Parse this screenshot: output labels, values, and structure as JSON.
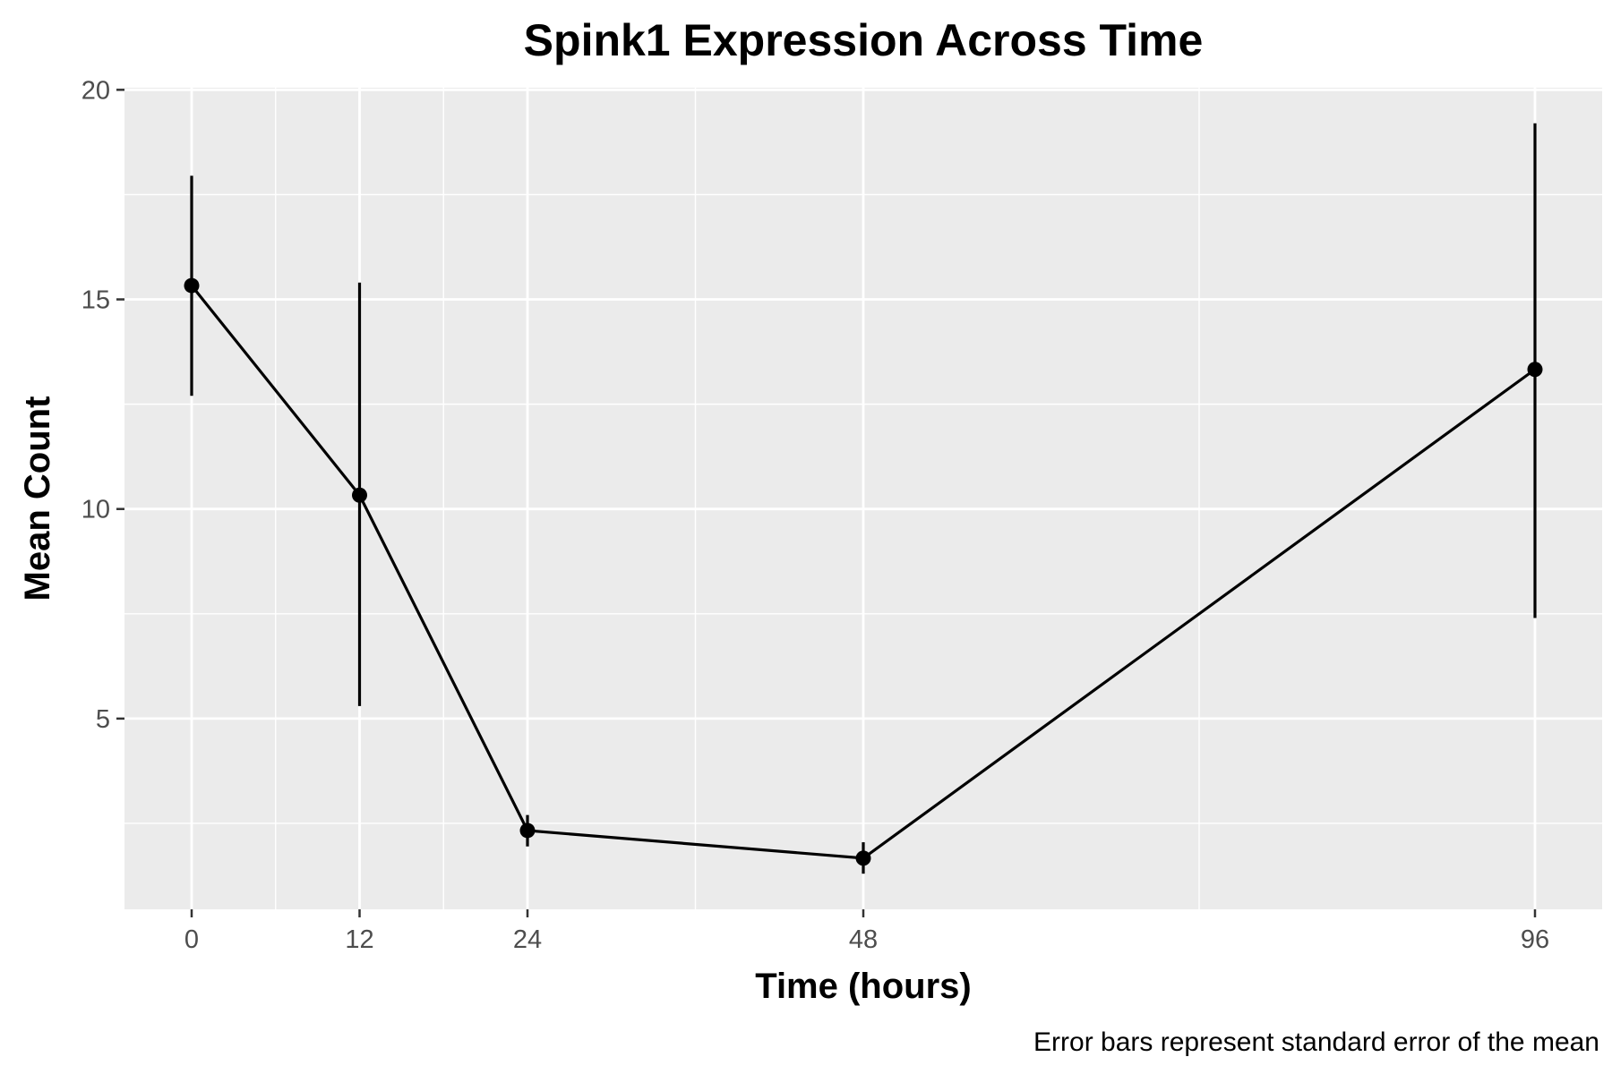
{
  "chart_data": {
    "type": "line",
    "title": "Spink1 Expression Across Time",
    "xlabel": "Time (hours)",
    "ylabel": "Mean Count",
    "caption": "Error bars represent standard error of the mean",
    "x_ticks": [
      "0",
      "12",
      "24",
      "48",
      "96"
    ],
    "y_ticks": [
      "5",
      "10",
      "15",
      "20"
    ],
    "xlim": [
      -4.8,
      100.8
    ],
    "ylim": [
      0.45,
      20.05
    ],
    "grid": true,
    "panel_background": "#ebebeb",
    "grid_color": "#ffffff",
    "line_color": "#000000",
    "series": [
      {
        "x": [
          0,
          12,
          24,
          48,
          96
        ],
        "y": [
          15.33,
          10.33,
          2.33,
          1.67,
          13.33
        ],
        "error_low": [
          12.7,
          5.3,
          1.95,
          1.3,
          7.4
        ],
        "error_high": [
          17.95,
          15.4,
          2.7,
          2.05,
          19.2
        ]
      }
    ]
  }
}
